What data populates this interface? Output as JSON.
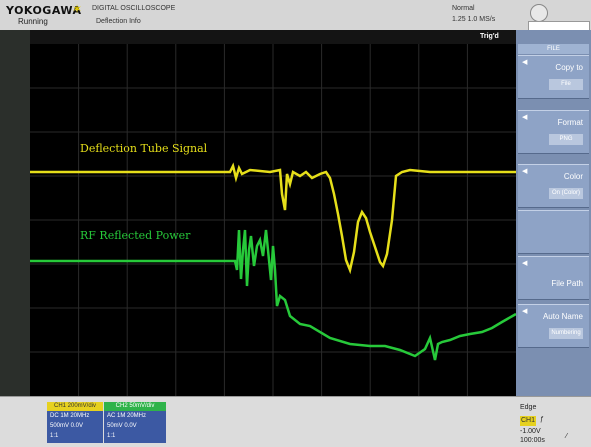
{
  "brand": {
    "name": "YOKOGAWA",
    "model": "DIGITAL OSCILLOSCOPE"
  },
  "status": {
    "run_state": "Running",
    "acq_mode": "Deflection Info"
  },
  "top_right": {
    "mode": "Normal",
    "sample_rate": "1.25 1.0 MS/s"
  },
  "screen": {
    "trigger_label": "",
    "trigger_right": "Trig'd",
    "trace1_label": "Deflection Tube Signal",
    "trace2_label": "RF Reflected Power",
    "trace1_color": "#e6df1a",
    "trace2_color": "#27c93a"
  },
  "softkeys": {
    "header": "FILE",
    "items": [
      {
        "label": "Copy to",
        "value": "File"
      },
      {
        "label": "Format",
        "value": "PNG"
      },
      {
        "label": "Color",
        "value": "On (Color)"
      },
      {
        "label": "",
        "value": ""
      },
      {
        "label": "File Path",
        "value": ""
      },
      {
        "label": "Auto Name",
        "value": "Numbering"
      }
    ]
  },
  "channels": {
    "ch1": {
      "tab": "CH1 200mV/div",
      "line1": "DC 1M 20MHz",
      "line2": "500mV 0.0V",
      "line3": "1:1"
    },
    "ch2": {
      "tab": "CH2 50mV/div",
      "line1": "AC 1M 20MHz",
      "line2": "50mV 0.0V",
      "line3": "1:1"
    }
  },
  "bottom_right": {
    "edge_label": "Edge",
    "ch": "CH1",
    "level": "-1.00V",
    "time": "100:00s"
  }
}
